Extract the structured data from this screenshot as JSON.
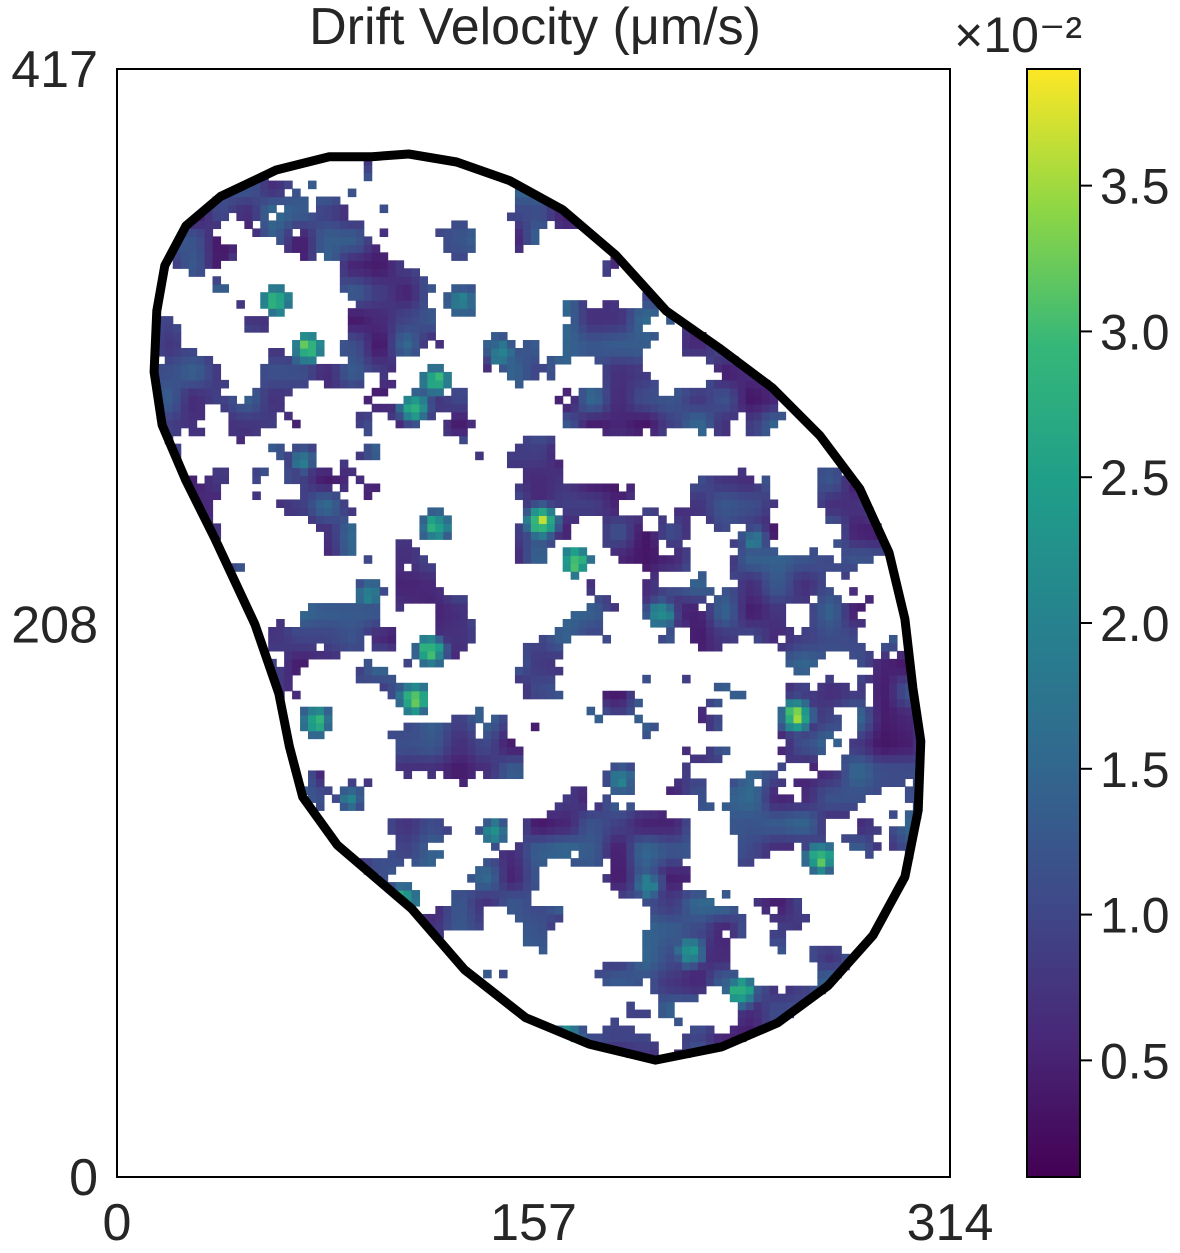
{
  "chart_data": {
    "type": "heatmap",
    "title": "Drift Velocity (μm/s)",
    "xlabel": "",
    "ylabel": "",
    "xlim": [
      0,
      314
    ],
    "ylim": [
      0,
      417
    ],
    "x_ticks": [
      "0",
      "157",
      "314"
    ],
    "y_ticks": [
      "0",
      "208",
      "417"
    ],
    "colormap": "viridis",
    "colorbar": {
      "multiplier_label": "×10⁻²",
      "range": [
        0.1,
        3.9
      ],
      "ticks": [
        "0.5",
        "1.0",
        "1.5",
        "2.0",
        "2.5",
        "3.0",
        "3.5"
      ],
      "tick_values": [
        0.5,
        1.0,
        1.5,
        2.0,
        2.5,
        3.0,
        3.5
      ]
    },
    "outline_color": "#000000",
    "outline": [
      [
        96,
        384
      ],
      [
        110,
        385
      ],
      [
        128,
        382
      ],
      [
        148,
        375
      ],
      [
        168,
        364
      ],
      [
        188,
        347
      ],
      [
        207,
        326
      ],
      [
        227,
        312
      ],
      [
        247,
        297
      ],
      [
        265,
        279
      ],
      [
        280,
        259
      ],
      [
        291,
        235
      ],
      [
        297,
        210
      ],
      [
        300,
        184
      ],
      [
        303,
        164
      ],
      [
        302,
        138
      ],
      [
        297,
        113
      ],
      [
        285,
        91
      ],
      [
        268,
        72
      ],
      [
        249,
        58
      ],
      [
        228,
        49
      ],
      [
        203,
        44
      ],
      [
        178,
        50
      ],
      [
        154,
        60
      ],
      [
        131,
        78
      ],
      [
        111,
        101
      ],
      [
        83,
        125
      ],
      [
        70,
        143
      ],
      [
        65,
        162
      ],
      [
        61,
        182
      ],
      [
        52,
        208
      ],
      [
        37,
        240
      ],
      [
        26,
        262
      ],
      [
        17,
        283
      ],
      [
        14,
        303
      ],
      [
        15,
        326
      ],
      [
        18,
        343
      ],
      [
        26,
        358
      ],
      [
        39,
        369
      ],
      [
        60,
        379
      ],
      [
        80,
        384
      ],
      [
        96,
        384
      ]
    ],
    "hotspots": [
      {
        "x": 173,
        "y": 232,
        "v": 3.6
      },
      {
        "x": 160,
        "y": 247,
        "v": 3.8
      },
      {
        "x": 120,
        "y": 300,
        "v": 3.3
      },
      {
        "x": 112,
        "y": 290,
        "v": 3.2
      },
      {
        "x": 60,
        "y": 330,
        "v": 3.4
      },
      {
        "x": 72,
        "y": 312,
        "v": 3.6
      },
      {
        "x": 120,
        "y": 245,
        "v": 3.1
      },
      {
        "x": 118,
        "y": 198,
        "v": 3.5
      },
      {
        "x": 112,
        "y": 180,
        "v": 3.7
      },
      {
        "x": 75,
        "y": 172,
        "v": 3.2
      },
      {
        "x": 256,
        "y": 174,
        "v": 3.8
      },
      {
        "x": 265,
        "y": 120,
        "v": 3.4
      },
      {
        "x": 235,
        "y": 70,
        "v": 3.3
      },
      {
        "x": 170,
        "y": 52,
        "v": 3.0
      },
      {
        "x": 216,
        "y": 85,
        "v": 2.7
      },
      {
        "x": 108,
        "y": 105,
        "v": 3.0
      },
      {
        "x": 205,
        "y": 212,
        "v": 2.6
      },
      {
        "x": 145,
        "y": 310,
        "v": 2.4
      },
      {
        "x": 130,
        "y": 330,
        "v": 2.2
      },
      {
        "x": 95,
        "y": 220,
        "v": 2.3
      },
      {
        "x": 70,
        "y": 270,
        "v": 2.0
      },
      {
        "x": 88,
        "y": 143,
        "v": 2.1
      },
      {
        "x": 142,
        "y": 130,
        "v": 2.4
      },
      {
        "x": 190,
        "y": 150,
        "v": 2.2
      },
      {
        "x": 240,
        "y": 240,
        "v": 2.0
      },
      {
        "x": 200,
        "y": 110,
        "v": 2.3
      }
    ]
  }
}
